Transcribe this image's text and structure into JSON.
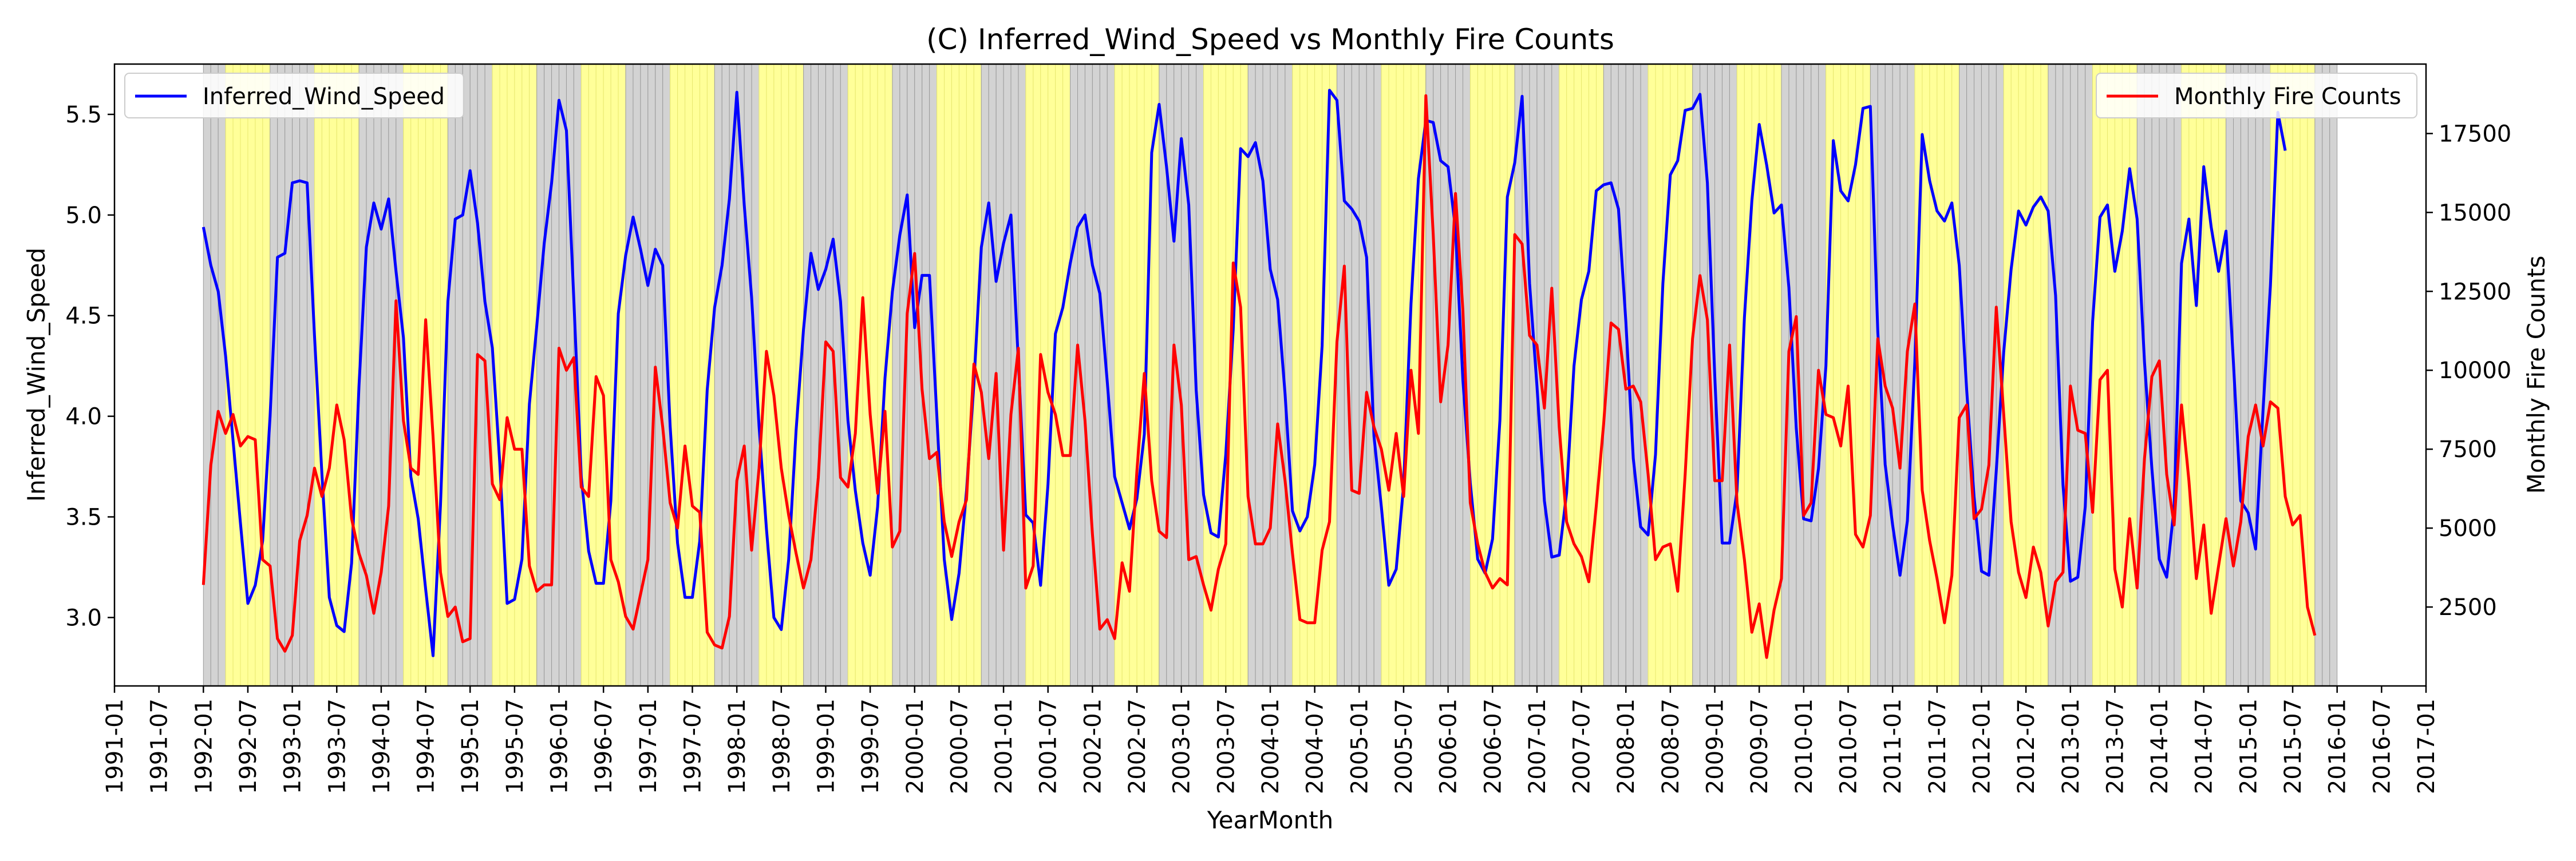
{
  "chart_data": {
    "type": "line",
    "title": "(C) Inferred_Wind_Speed vs Monthly Fire Counts",
    "xlabel": "YearMonth",
    "ylabel_left": "Inferred_Wind_Speed",
    "ylabel_right": "Monthly Fire Counts",
    "x_range": [
      "1991-01",
      "2017-01"
    ],
    "ylim_left": [
      2.66,
      5.75
    ],
    "ylim_right": [
      0,
      19700
    ],
    "x_ticks": [
      "1991-01",
      "1991-07",
      "1992-01",
      "1992-07",
      "1993-01",
      "1993-07",
      "1994-01",
      "1994-07",
      "1995-01",
      "1995-07",
      "1996-01",
      "1996-07",
      "1997-01",
      "1997-07",
      "1998-01",
      "1998-07",
      "1999-01",
      "1999-07",
      "2000-01",
      "2000-07",
      "2001-01",
      "2001-07",
      "2002-01",
      "2002-07",
      "2003-01",
      "2003-07",
      "2004-01",
      "2004-07",
      "2005-01",
      "2005-07",
      "2006-01",
      "2006-07",
      "2007-01",
      "2007-07",
      "2008-01",
      "2008-07",
      "2009-01",
      "2009-07",
      "2010-01",
      "2010-07",
      "2011-01",
      "2011-07",
      "2012-01",
      "2012-07",
      "2013-01",
      "2013-07",
      "2014-01",
      "2014-07",
      "2015-01",
      "2015-07",
      "2016-01",
      "2016-07",
      "2017-01"
    ],
    "y_ticks_left": [
      "3.0",
      "3.5",
      "4.0",
      "4.5",
      "5.0",
      "5.5"
    ],
    "y_ticks_right": [
      "2500",
      "5000",
      "7500",
      "10000",
      "12500",
      "15000",
      "17500"
    ],
    "grid": false,
    "background_bands": {
      "description": "monthly shaded bands: gray for Oct-Mar, yellow for Apr-Sep",
      "start": "1992-01",
      "end": "2015-12",
      "colors": {
        "wet": "#d3d3d3",
        "dry": "#ffff99"
      }
    },
    "series": [
      {
        "name": "Inferred_Wind_Speed",
        "axis": "left",
        "color": "#0000ff",
        "start": "1992-01",
        "values": [
          4.94,
          4.75,
          4.62,
          4.3,
          3.88,
          3.47,
          3.07,
          3.16,
          3.38,
          4.0,
          4.79,
          4.81,
          5.16,
          5.17,
          5.16,
          4.4,
          3.71,
          3.1,
          2.96,
          2.93,
          3.27,
          4.15,
          4.84,
          5.06,
          4.93,
          5.08,
          4.72,
          4.39,
          3.7,
          3.49,
          3.14,
          2.81,
          3.56,
          4.57,
          4.98,
          5.0,
          5.22,
          4.96,
          4.57,
          4.34,
          3.77,
          3.07,
          3.09,
          3.29,
          4.06,
          4.45,
          4.86,
          5.16,
          5.57,
          5.42,
          4.58,
          3.7,
          3.33,
          3.17,
          3.17,
          3.58,
          4.51,
          4.8,
          4.99,
          4.83,
          4.65,
          4.83,
          4.75,
          3.95,
          3.37,
          3.1,
          3.1,
          3.38,
          4.13,
          4.54,
          4.75,
          5.08,
          5.61,
          5.05,
          4.59,
          3.95,
          3.44,
          3.0,
          2.94,
          3.29,
          3.93,
          4.43,
          4.81,
          4.63,
          4.73,
          4.88,
          4.57,
          3.98,
          3.63,
          3.37,
          3.21,
          3.55,
          4.19,
          4.62,
          4.9,
          5.1,
          4.44,
          4.7,
          4.7,
          4.0,
          3.29,
          2.99,
          3.22,
          3.63,
          4.16,
          4.84,
          5.06,
          4.67,
          4.86,
          5.0,
          4.27,
          3.51,
          3.47,
          3.16,
          3.66,
          4.41,
          4.54,
          4.76,
          4.94,
          5.0,
          4.75,
          4.61,
          4.17,
          3.7,
          3.57,
          3.44,
          3.59,
          3.91,
          5.31,
          5.55,
          5.24,
          4.87,
          5.38,
          5.05,
          4.13,
          3.61,
          3.42,
          3.4,
          3.81,
          4.43,
          5.33,
          5.29,
          5.36,
          5.17,
          4.73,
          4.58,
          4.11,
          3.53,
          3.43,
          3.5,
          3.76,
          4.35,
          5.62,
          5.57,
          5.07,
          5.03,
          4.97,
          4.79,
          3.9,
          3.55,
          3.16,
          3.24,
          3.66,
          4.56,
          5.18,
          5.47,
          5.46,
          5.27,
          5.24,
          4.93,
          4.18,
          3.67,
          3.29,
          3.22,
          3.39,
          3.98,
          5.09,
          5.26,
          5.59,
          4.66,
          4.15,
          3.58,
          3.3,
          3.31,
          3.62,
          4.25,
          4.58,
          4.72,
          5.12,
          5.15,
          5.16,
          5.03,
          4.47,
          3.79,
          3.45,
          3.41,
          3.81,
          4.66,
          5.2,
          5.27,
          5.52,
          5.53,
          5.6,
          5.16,
          4.2,
          3.37,
          3.37,
          3.63,
          4.49,
          5.07,
          5.45,
          5.25,
          5.01,
          5.05,
          4.64,
          3.94,
          3.49,
          3.48,
          3.74,
          4.25,
          5.37,
          5.12,
          5.07,
          5.25,
          5.53,
          5.54,
          4.42,
          3.76,
          3.46,
          3.21,
          3.48,
          4.27,
          5.4,
          5.17,
          5.02,
          4.97,
          5.06,
          4.75,
          4.13,
          3.6,
          3.23,
          3.21,
          3.73,
          4.32,
          4.73,
          5.02,
          4.95,
          5.04,
          5.09,
          5.02,
          4.6,
          3.66,
          3.18,
          3.2,
          3.55,
          4.47,
          4.99,
          5.05,
          4.72,
          4.92,
          5.23,
          4.98,
          4.27,
          3.74,
          3.29,
          3.2,
          3.55,
          4.76,
          4.98,
          4.55,
          5.24,
          4.94,
          4.72,
          4.92,
          4.27,
          3.58,
          3.52,
          3.34,
          4.03,
          4.65,
          5.51,
          5.32
        ]
      },
      {
        "name": "Monthly Fire Counts",
        "axis": "right",
        "color": "#ff0000",
        "start": "1992-01",
        "values": [
          3200,
          7000,
          8700,
          8000,
          8600,
          7600,
          7900,
          7800,
          4000,
          3800,
          1500,
          1100,
          1600,
          4600,
          5400,
          6900,
          6000,
          6900,
          8900,
          7800,
          5300,
          4200,
          3500,
          2300,
          3600,
          5700,
          12200,
          8400,
          6900,
          6700,
          11600,
          7900,
          3600,
          2200,
          2500,
          1400,
          1500,
          10500,
          10300,
          6400,
          5900,
          8500,
          7500,
          7500,
          3800,
          3000,
          3200,
          3200,
          10700,
          10000,
          10400,
          6300,
          6000,
          9800,
          9200,
          4000,
          3300,
          2200,
          1800,
          2900,
          4000,
          10100,
          8200,
          5800,
          5000,
          7600,
          5700,
          5500,
          1700,
          1300,
          1200,
          2200,
          6500,
          7600,
          4300,
          6900,
          10600,
          9200,
          6900,
          5400,
          4200,
          3100,
          4000,
          6600,
          10900,
          10600,
          6600,
          6300,
          8000,
          12300,
          8600,
          6100,
          8700,
          4400,
          4900,
          11800,
          13700,
          9400,
          7200,
          7400,
          5200,
          4100,
          5200,
          5900,
          10200,
          9300,
          7200,
          9900,
          4300,
          8600,
          10700,
          3100,
          3800,
          10500,
          9300,
          8600,
          7300,
          7300,
          10800,
          8400,
          4800,
          1800,
          2100,
          1500,
          3900,
          3000,
          6800,
          9900,
          6500,
          4900,
          4700,
          10800,
          8900,
          4000,
          4100,
          3200,
          2400,
          3700,
          4500,
          13400,
          12000,
          6000,
          4500,
          4500,
          5000,
          8300,
          6500,
          4200,
          2100,
          2000,
          2000,
          4300,
          5200,
          10900,
          13300,
          6200,
          6100,
          9300,
          8200,
          7500,
          6200,
          8000,
          6000,
          10000,
          8000,
          18700,
          14300,
          9000,
          10800,
          15600,
          11900,
          5800,
          4500,
          3600,
          3100,
          3400,
          3200,
          14300,
          14000,
          11100,
          10800,
          8800,
          12600,
          8200,
          5200,
          4500,
          4100,
          3300,
          5700,
          8300,
          11500,
          11300,
          9400,
          9500,
          9000,
          6700,
          4000,
          4400,
          4500,
          3000,
          6700,
          11000,
          13000,
          11600,
          6500,
          6500,
          10800,
          5800,
          4000,
          1700,
          2600,
          900,
          2400,
          3400,
          10600,
          11700,
          5400,
          5800,
          10000,
          8600,
          8500,
          7600,
          9500,
          4800,
          4400,
          5400,
          11000,
          9500,
          8800,
          6900,
          10600,
          12100,
          6200,
          4600,
          3400,
          2000,
          3500,
          8500,
          8900,
          5300,
          5600,
          7000,
          12000,
          8600,
          5200,
          3600,
          2800,
          4400,
          3600,
          1900,
          3300,
          3600,
          9500,
          8100,
          8000,
          5500,
          9700,
          10000,
          3700,
          2500,
          5300,
          3100,
          7200,
          9800,
          10300,
          6700,
          5100,
          8900,
          6500,
          3400,
          5100,
          2300,
          3800,
          5300,
          3800,
          5200,
          7900,
          8900,
          7600,
          9000,
          8800,
          6000,
          5100,
          5400,
          2500,
          1600
        ]
      }
    ]
  }
}
